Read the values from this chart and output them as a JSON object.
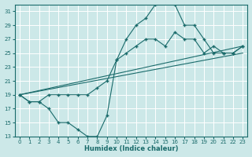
{
  "xlabel": "Humidex (Indice chaleur)",
  "bg_color": "#cce8e8",
  "grid_color": "#aacccc",
  "line_color": "#1a6b6b",
  "xlim": [
    -0.5,
    23.5
  ],
  "ylim": [
    13,
    32
  ],
  "yticks": [
    13,
    15,
    17,
    19,
    21,
    23,
    25,
    27,
    29,
    31
  ],
  "xticks": [
    0,
    1,
    2,
    3,
    4,
    5,
    6,
    7,
    8,
    9,
    10,
    11,
    12,
    13,
    14,
    15,
    16,
    17,
    18,
    19,
    20,
    21,
    22,
    23
  ],
  "line1_x": [
    0,
    1,
    2,
    3,
    4,
    5,
    6,
    7,
    8,
    9,
    10,
    11,
    12,
    13,
    14,
    15,
    16,
    17,
    18,
    19,
    20,
    21,
    22,
    23
  ],
  "line1_y": [
    19,
    18,
    18,
    17,
    15,
    15,
    14,
    13,
    13,
    16,
    24,
    27,
    29,
    30,
    32,
    33,
    32,
    29,
    29,
    27,
    25,
    25,
    25,
    26
  ],
  "line2_x": [
    0,
    1,
    2,
    3,
    4,
    5,
    6,
    7,
    8,
    9,
    10,
    11,
    12,
    13,
    14,
    15,
    16,
    17,
    18,
    19,
    20,
    21,
    22,
    23
  ],
  "line2_y": [
    19,
    18,
    18,
    19,
    19,
    19,
    19,
    19,
    20,
    21,
    24,
    25,
    26,
    27,
    27,
    26,
    28,
    27,
    27,
    25,
    26,
    25,
    25,
    26
  ],
  "line3_x": [
    0,
    23
  ],
  "line3_y": [
    19,
    26
  ],
  "line4_x": [
    0,
    23
  ],
  "line4_y": [
    19,
    25
  ]
}
